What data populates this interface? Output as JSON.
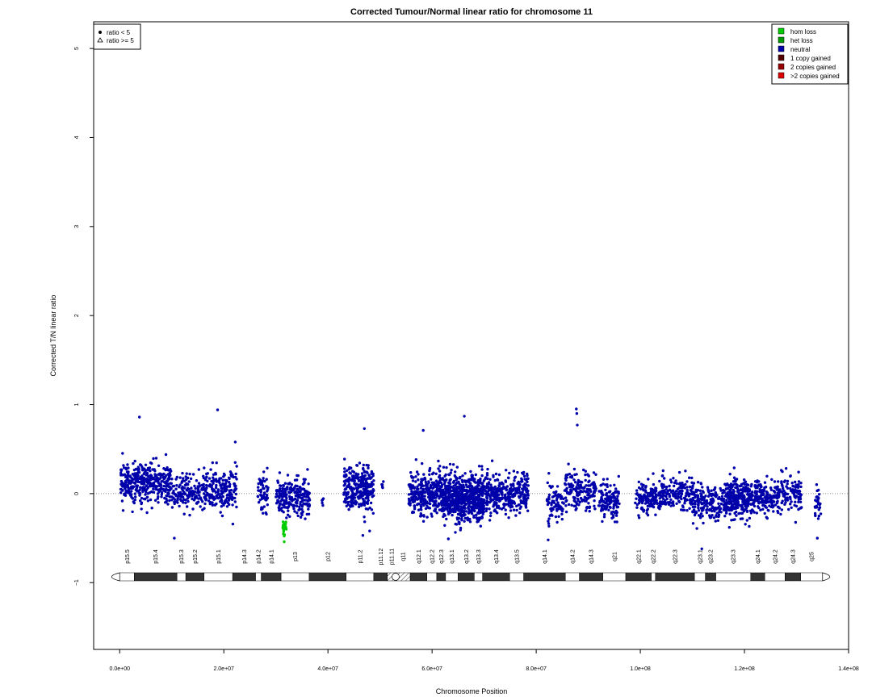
{
  "chart_data": {
    "type": "scatter",
    "title": "Corrected Tumour/Normal linear ratio for chromosome  11",
    "xlabel": "Chromosome Position",
    "ylabel": "Corrected T/N linear ratio",
    "xlim": [
      -5000000,
      140000000
    ],
    "ylim": [
      -1.75,
      5.3
    ],
    "x_ticks": [
      {
        "value": 0,
        "label": "0.0e+00"
      },
      {
        "value": 20000000,
        "label": "2.0e+07"
      },
      {
        "value": 40000000,
        "label": "4.0e+07"
      },
      {
        "value": 60000000,
        "label": "6.0e+07"
      },
      {
        "value": 80000000,
        "label": "8.0e+07"
      },
      {
        "value": 100000000,
        "label": "1.0e+08"
      },
      {
        "value": 120000000,
        "label": "1.2e+08"
      },
      {
        "value": 140000000,
        "label": "1.4e+08"
      }
    ],
    "y_ticks": [
      {
        "value": -1,
        "label": "−1"
      },
      {
        "value": 0,
        "label": "0"
      },
      {
        "value": 1,
        "label": "1"
      },
      {
        "value": 2,
        "label": "2"
      },
      {
        "value": 3,
        "label": "3"
      },
      {
        "value": 4,
        "label": "4"
      },
      {
        "value": 5,
        "label": "5"
      }
    ],
    "reference_line": 0,
    "symbol_legend": {
      "position": "top-left",
      "items": [
        {
          "symbol": "dot",
          "label": "ratio < 5"
        },
        {
          "symbol": "triangle",
          "label": "ratio >= 5"
        }
      ]
    },
    "color_legend": {
      "position": "top-right",
      "items": [
        {
          "label": "hom loss",
          "color": "#00cc00"
        },
        {
          "label": "het loss",
          "color": "#009900"
        },
        {
          "label": "neutral",
          "color": "#0000aa"
        },
        {
          "label": "1 copy gained",
          "color": "#550000"
        },
        {
          "label": "2 copies gained",
          "color": "#990000"
        },
        {
          "label": ">2 copies gained",
          "color": "#dd0000"
        }
      ]
    },
    "series": [
      {
        "status": "neutral",
        "color": "#0000aa",
        "clusters": [
          {
            "start": 0.2,
            "end": 10.0,
            "center": 0.12,
            "spread": 0.18,
            "count": 380
          },
          {
            "start": 10.0,
            "end": 16.0,
            "center": 0.0,
            "spread": 0.15,
            "count": 140
          },
          {
            "start": 16.0,
            "end": 22.5,
            "center": 0.05,
            "spread": 0.18,
            "count": 200
          },
          {
            "start": 26.5,
            "end": 28.5,
            "center": 0.0,
            "spread": 0.17,
            "count": 60
          },
          {
            "start": 30.0,
            "end": 36.5,
            "center": -0.05,
            "spread": 0.16,
            "count": 230
          },
          {
            "start": 38.8,
            "end": 39.2,
            "center": -0.08,
            "spread": 0.05,
            "count": 6
          },
          {
            "start": 43.0,
            "end": 48.8,
            "center": 0.05,
            "spread": 0.18,
            "count": 300
          },
          {
            "start": 50.3,
            "end": 50.8,
            "center": 0.1,
            "spread": 0.03,
            "count": 6
          },
          {
            "start": 55.5,
            "end": 62.0,
            "center": 0.0,
            "spread": 0.18,
            "count": 300
          },
          {
            "start": 62.0,
            "end": 70.0,
            "center": -0.05,
            "spread": 0.2,
            "count": 700
          },
          {
            "start": 70.0,
            "end": 78.5,
            "center": 0.0,
            "spread": 0.16,
            "count": 350
          },
          {
            "start": 82.0,
            "end": 85.5,
            "center": -0.1,
            "spread": 0.14,
            "count": 80
          },
          {
            "start": 85.5,
            "end": 91.5,
            "center": 0.03,
            "spread": 0.17,
            "count": 170
          },
          {
            "start": 92.0,
            "end": 96.0,
            "center": -0.08,
            "spread": 0.15,
            "count": 130
          },
          {
            "start": 99.0,
            "end": 104.0,
            "center": -0.05,
            "spread": 0.14,
            "count": 150
          },
          {
            "start": 104.0,
            "end": 110.0,
            "center": 0.02,
            "spread": 0.15,
            "count": 160
          },
          {
            "start": 110.0,
            "end": 116.0,
            "center": -0.1,
            "spread": 0.16,
            "count": 180
          },
          {
            "start": 116.0,
            "end": 121.0,
            "center": -0.05,
            "spread": 0.16,
            "count": 260
          },
          {
            "start": 121.0,
            "end": 127.0,
            "center": -0.05,
            "spread": 0.14,
            "count": 200
          },
          {
            "start": 127.0,
            "end": 131.0,
            "center": 0.0,
            "spread": 0.15,
            "count": 100
          },
          {
            "start": 133.5,
            "end": 134.8,
            "center": -0.1,
            "spread": 0.15,
            "count": 30
          }
        ],
        "outliers": [
          {
            "x": 3.8,
            "y": 0.86
          },
          {
            "x": 18.8,
            "y": 0.94
          },
          {
            "x": 22.2,
            "y": 0.58
          },
          {
            "x": 47.0,
            "y": 0.73
          },
          {
            "x": 58.3,
            "y": 0.71
          },
          {
            "x": 66.2,
            "y": 0.87
          },
          {
            "x": 87.7,
            "y": 0.95
          },
          {
            "x": 87.9,
            "y": 0.77
          },
          {
            "x": 87.8,
            "y": 0.9
          },
          {
            "x": 10.5,
            "y": -0.5
          },
          {
            "x": 82.3,
            "y": -0.52
          },
          {
            "x": 111.8,
            "y": -0.62
          },
          {
            "x": 134.0,
            "y": -0.5
          },
          {
            "x": 48.0,
            "y": -0.42
          }
        ]
      },
      {
        "status": "hom loss",
        "color": "#00cc00",
        "clusters": [
          {
            "start": 31.3,
            "end": 32.0,
            "center": -0.38,
            "spread": 0.06,
            "count": 26
          }
        ],
        "outliers": [
          {
            "x": 31.6,
            "y": -0.54
          }
        ]
      }
    ],
    "x_units_note_free": true,
    "ideogram": {
      "chromosome_length": 135000000,
      "centromere": 53000000,
      "bands": [
        {
          "name": "p15.5",
          "start": 0,
          "end": 2.8,
          "stain": "gneg"
        },
        {
          "name": "p15.4",
          "start": 2.8,
          "end": 11.0,
          "stain": "gpos"
        },
        {
          "name": "p15.3",
          "start": 11.0,
          "end": 12.7,
          "stain": "gneg"
        },
        {
          "name": "p15.2",
          "start": 12.7,
          "end": 16.2,
          "stain": "gpos"
        },
        {
          "name": "p15.1",
          "start": 16.2,
          "end": 21.7,
          "stain": "gneg"
        },
        {
          "name": "p14.3",
          "start": 21.7,
          "end": 26.1,
          "stain": "gpos"
        },
        {
          "name": "p14.2",
          "start": 26.1,
          "end": 27.2,
          "stain": "gneg"
        },
        {
          "name": "p14.1",
          "start": 27.2,
          "end": 31.0,
          "stain": "gpos"
        },
        {
          "name": "p13",
          "start": 31.0,
          "end": 36.4,
          "stain": "gneg"
        },
        {
          "name": "p12",
          "start": 36.4,
          "end": 43.5,
          "stain": "gpos"
        },
        {
          "name": "p11.2",
          "start": 43.5,
          "end": 48.8,
          "stain": "gneg"
        },
        {
          "name": "p11.12",
          "start": 48.8,
          "end": 51.4,
          "stain": "gpos"
        },
        {
          "name": "p11.11",
          "start": 51.4,
          "end": 53.0,
          "stain": "acen"
        },
        {
          "name": "q11",
          "start": 53.0,
          "end": 55.8,
          "stain": "acen"
        },
        {
          "name": "q12.1",
          "start": 55.8,
          "end": 59.0,
          "stain": "gpos"
        },
        {
          "name": "q12.2",
          "start": 59.0,
          "end": 60.9,
          "stain": "gneg"
        },
        {
          "name": "q12.3",
          "start": 60.9,
          "end": 62.6,
          "stain": "gpos"
        },
        {
          "name": "q13.1",
          "start": 62.6,
          "end": 65.0,
          "stain": "gneg"
        },
        {
          "name": "q13.2",
          "start": 65.0,
          "end": 68.1,
          "stain": "gpos"
        },
        {
          "name": "q13.3",
          "start": 68.1,
          "end": 69.7,
          "stain": "gneg"
        },
        {
          "name": "q13.4",
          "start": 69.7,
          "end": 74.9,
          "stain": "gpos"
        },
        {
          "name": "q13.5",
          "start": 74.9,
          "end": 77.6,
          "stain": "gneg"
        },
        {
          "name": "q14.1",
          "start": 77.6,
          "end": 85.6,
          "stain": "gpos"
        },
        {
          "name": "q14.2",
          "start": 85.6,
          "end": 88.3,
          "stain": "gneg"
        },
        {
          "name": "q14.3",
          "start": 88.3,
          "end": 92.8,
          "stain": "gpos"
        },
        {
          "name": "q21",
          "start": 92.8,
          "end": 97.2,
          "stain": "gneg"
        },
        {
          "name": "q22.1",
          "start": 97.2,
          "end": 102.1,
          "stain": "gpos"
        },
        {
          "name": "q22.2",
          "start": 102.1,
          "end": 102.9,
          "stain": "gneg"
        },
        {
          "name": "q22.3",
          "start": 102.9,
          "end": 110.4,
          "stain": "gpos"
        },
        {
          "name": "q23.1",
          "start": 110.4,
          "end": 112.5,
          "stain": "gneg"
        },
        {
          "name": "q23.2",
          "start": 112.5,
          "end": 114.5,
          "stain": "gpos"
        },
        {
          "name": "q23.3",
          "start": 114.5,
          "end": 121.2,
          "stain": "gneg"
        },
        {
          "name": "q24.1",
          "start": 121.2,
          "end": 123.9,
          "stain": "gpos"
        },
        {
          "name": "q24.2",
          "start": 123.9,
          "end": 127.8,
          "stain": "gneg"
        },
        {
          "name": "q24.3",
          "start": 127.8,
          "end": 130.8,
          "stain": "gpos"
        },
        {
          "name": "q25",
          "start": 130.8,
          "end": 135.0,
          "stain": "gneg"
        }
      ]
    }
  }
}
